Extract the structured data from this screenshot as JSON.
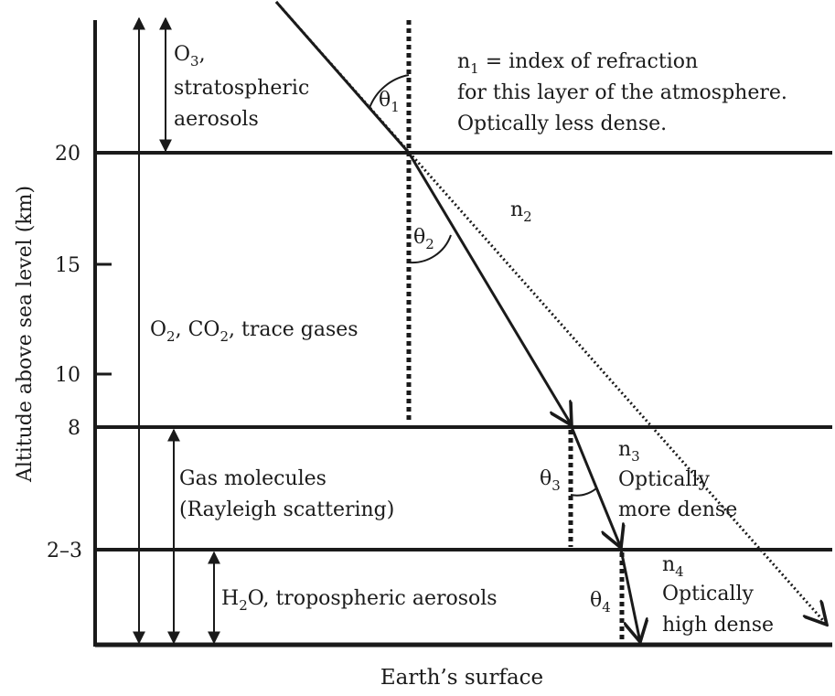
{
  "axis": {
    "y_label": "Altitude above sea level (km)",
    "x_label": "Earth’s surface",
    "ticks": [
      "20",
      "15",
      "10",
      "8",
      "2–3"
    ]
  },
  "layers": {
    "top": {
      "line1": "O",
      "line1_sub": "3",
      "line1_tail": ",",
      "line2": "stratospheric",
      "line3": "aerosols"
    },
    "middle": {
      "t1": "O",
      "s1": "2",
      "t2": ", CO",
      "s2": "2",
      "t3": ", trace gases"
    },
    "gas": {
      "line1": "Gas molecules",
      "line2": "(Rayleigh scattering)"
    },
    "water": {
      "t1": "H",
      "s1": "2",
      "t2": "O, tropospheric aerosols"
    }
  },
  "indices": {
    "n1": {
      "sym": "n",
      "sub": "1",
      "text": " = index of refraction",
      "line2": "for this layer of the atmosphere.",
      "line3": "Optically less dense."
    },
    "n2": {
      "sym": "n",
      "sub": "2"
    },
    "n3": {
      "sym": "n",
      "sub": "3",
      "line2": "Optically",
      "line3": "more dense"
    },
    "n4": {
      "sym": "n",
      "sub": "4",
      "line2": "Optically",
      "line3": "high dense"
    }
  },
  "angles": {
    "theta1": {
      "sym": "θ",
      "sub": "1"
    },
    "theta2": {
      "sym": "θ",
      "sub": "2"
    },
    "theta3": {
      "sym": "θ",
      "sub": "3"
    },
    "theta4": {
      "sym": "θ",
      "sub": "4"
    }
  },
  "colors": {
    "ink": "#1a1a1a",
    "background": "#ffffff"
  }
}
